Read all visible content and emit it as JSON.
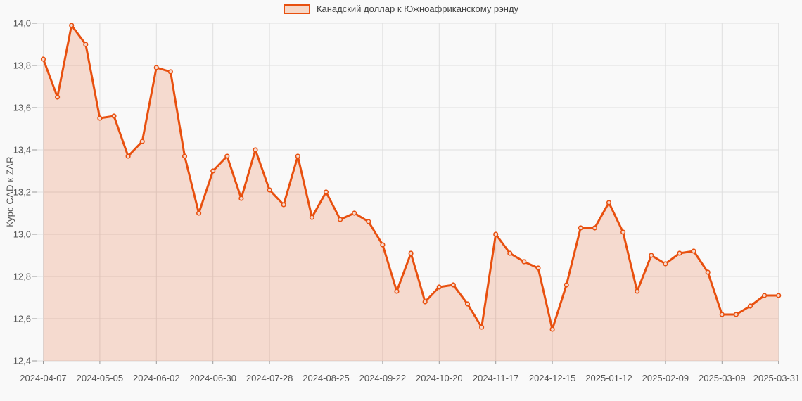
{
  "legend": {
    "label": "Канадский доллар к Южноафриканскому рэнду"
  },
  "chart_data": {
    "type": "area",
    "title": "Канадский доллар к Южноафриканскому рэнду",
    "ylabel": "Курс CAD к ZAR",
    "xlabel": "",
    "ylim": [
      12.4,
      14.0
    ],
    "y_tick_step": 0.2,
    "y_tick_labels": [
      "14,0",
      "13,8",
      "13,6",
      "13,4",
      "13,2",
      "13,0",
      "12,8",
      "12,6",
      "12,4"
    ],
    "x_tick_step": 4,
    "x_tick_labels": [
      "2024-04-07",
      "2024-05-05",
      "2024-06-02",
      "2024-06-30",
      "2024-07-28",
      "2024-08-25",
      "2024-09-22",
      "2024-10-20",
      "2024-11-17",
      "2024-12-15",
      "2025-01-12",
      "2025-02-09",
      "2025-03-09",
      "2025-03-31"
    ],
    "series": [
      {
        "name": "Канадский доллар к Южноафриканскому рэнду",
        "values": [
          13.83,
          13.65,
          13.99,
          13.9,
          13.55,
          13.56,
          13.37,
          13.44,
          13.79,
          13.77,
          13.37,
          13.1,
          13.3,
          13.37,
          13.17,
          13.4,
          13.21,
          13.14,
          13.37,
          13.08,
          13.2,
          13.07,
          13.1,
          13.06,
          12.95,
          12.73,
          12.91,
          12.68,
          12.75,
          12.76,
          12.67,
          12.56,
          13.0,
          12.91,
          12.87,
          12.84,
          12.55,
          12.76,
          13.03,
          13.03,
          13.15,
          13.01,
          12.73,
          12.9,
          12.86,
          12.91,
          12.92,
          12.82,
          12.62,
          12.62,
          12.66,
          12.71,
          12.71
        ]
      }
    ],
    "grid": true,
    "markers": true,
    "legend_position": "top-center"
  },
  "colors": {
    "background": "#f9f9f9",
    "grid": "#dedede",
    "tick": "#999999",
    "axis_text": "#555555",
    "legend_text": "#3f3f3f",
    "line": "#e8500f",
    "area_fill": "rgba(230,75,15,0.18)",
    "marker_fill": "#f6dacf",
    "legend_swatch_fill": "#f6d8c8"
  }
}
